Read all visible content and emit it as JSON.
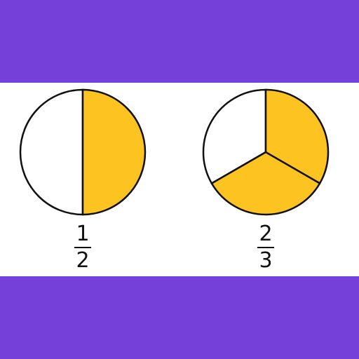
{
  "colors": {
    "band": "#7540d9",
    "fill": "#fdc321",
    "empty": "#ffffff",
    "stroke": "#111111"
  },
  "fractions": [
    {
      "numerator": "1",
      "denominator": "2",
      "parts": 2,
      "shaded": 1
    },
    {
      "numerator": "2",
      "denominator": "3",
      "parts": 3,
      "shaded": 2
    }
  ]
}
